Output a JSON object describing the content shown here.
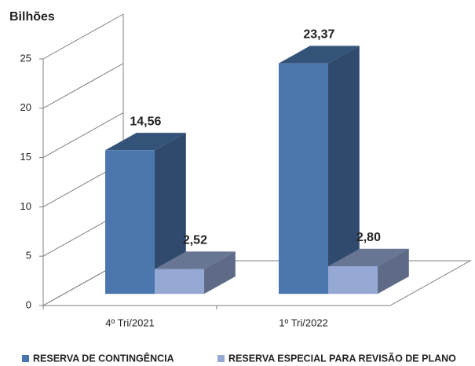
{
  "chart_data": {
    "type": "bar3d",
    "title": "Bilhões",
    "categories": [
      "4º Tri/2021",
      "1º Tri/2022"
    ],
    "series": [
      {
        "name": "RESERVA DE CONTINGÊNCIA",
        "color": "#4a76ad",
        "values": [
          14.56,
          23.37
        ],
        "value_labels": [
          "14,56",
          "23,37"
        ]
      },
      {
        "name": "RESERVA ESPECIAL PARA REVISÃO DE PLANO",
        "color": "#95a9d4",
        "values": [
          2.52,
          2.8
        ],
        "value_labels": [
          "2,52",
          "2,80"
        ]
      }
    ],
    "ylim": [
      0,
      25
    ],
    "yticks": [
      0,
      5,
      10,
      15,
      20,
      25
    ],
    "legend": "bottom"
  }
}
